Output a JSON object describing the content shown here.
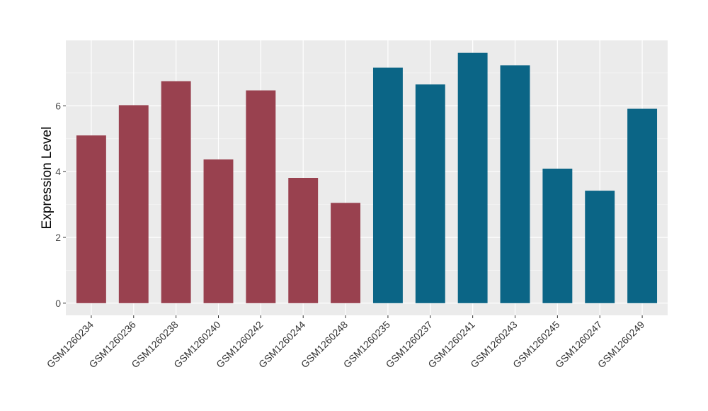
{
  "chart_data": {
    "type": "bar",
    "title": "",
    "xlabel": "",
    "ylabel": "Expression Level",
    "ylim": [
      -0.37,
      7.99
    ],
    "yticks": [
      0,
      2,
      4,
      6
    ],
    "grid": true,
    "categories": [
      "GSM1260234",
      "GSM1260236",
      "GSM1260238",
      "GSM1260240",
      "GSM1260242",
      "GSM1260244",
      "GSM1260248",
      "GSM1260235",
      "GSM1260237",
      "GSM1260241",
      "GSM1260243",
      "GSM1260245",
      "GSM1260247",
      "GSM1260249"
    ],
    "values": [
      5.1,
      6.02,
      6.75,
      4.37,
      6.47,
      3.81,
      3.05,
      7.16,
      6.65,
      7.61,
      7.23,
      4.09,
      3.42,
      5.91
    ],
    "groups": [
      "a",
      "a",
      "a",
      "a",
      "a",
      "a",
      "a",
      "b",
      "b",
      "b",
      "b",
      "b",
      "b",
      "b"
    ],
    "colors": {
      "a": "#99414F",
      "b": "#0B6586"
    }
  }
}
